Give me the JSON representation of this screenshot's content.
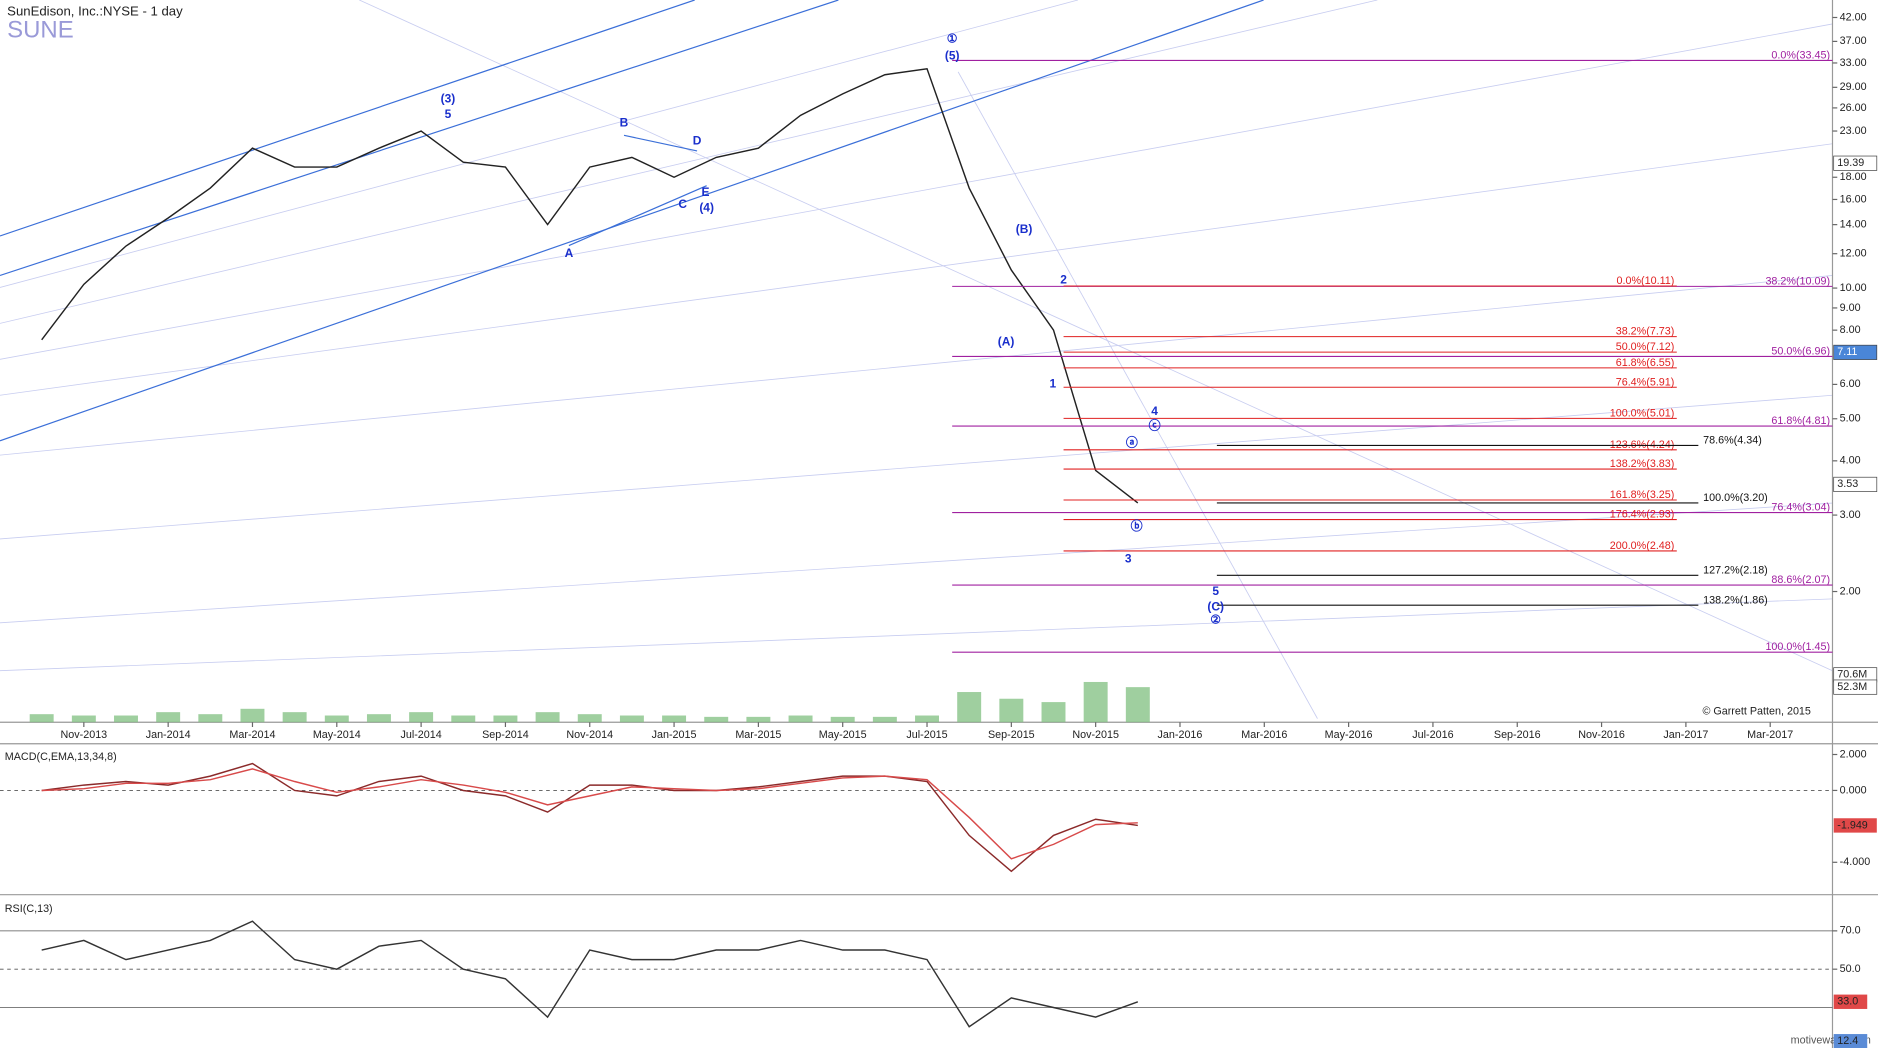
{
  "chart_data": [
    {
      "type": "line",
      "title": "SunEdison, Inc.:NYSE - 1 day",
      "symbol": "SUNE",
      "log_scale": true,
      "categories": [
        null,
        "Nov-2013",
        null,
        "Jan-2014",
        null,
        "Mar-2014",
        null,
        "May-2014",
        null,
        "Jul-2014",
        null,
        "Sep-2014",
        null,
        "Nov-2014",
        null,
        "Jan-2015",
        null,
        "Mar-2015",
        null,
        "May-2015",
        null,
        "Jul-2015",
        null,
        "Sep-2015",
        null,
        "Nov-2015",
        null,
        "Jan-2016",
        null,
        "Mar-2016",
        null,
        "May-2016",
        null,
        "Jul-2016",
        null,
        "Sep-2016",
        null,
        "Nov-2016",
        null,
        "Jan-2017",
        null,
        "Mar-2017",
        null
      ],
      "series": [
        {
          "name": "SUNE",
          "color": "#222222",
          "values": [
            7.6,
            10.2,
            12.5,
            14.5,
            17,
            21,
            19,
            19,
            21,
            23,
            19.5,
            19,
            14,
            19,
            20,
            18,
            20,
            21,
            25,
            28,
            31,
            32,
            17,
            11,
            8,
            3.8,
            3.2,
            null,
            null,
            null,
            null,
            null,
            null,
            null,
            null,
            null,
            null,
            null,
            null,
            null,
            null,
            null,
            null
          ]
        },
        {
          "name": "Volume",
          "color": "#7fbf7f",
          "axis": "y2",
          "values": [
            12,
            10,
            10,
            15,
            12,
            20,
            15,
            10,
            12,
            15,
            10,
            10,
            15,
            12,
            10,
            10,
            8,
            8,
            10,
            8,
            8,
            10,
            45,
            35,
            30,
            60,
            52.3,
            null,
            null,
            null,
            null,
            null,
            null,
            null,
            null,
            null,
            null,
            null,
            null,
            null,
            null,
            null,
            null
          ]
        }
      ],
      "ylim": [
        1,
        45.5
      ],
      "yticks": [
        {
          "value": 42,
          "label": "42.00"
        },
        {
          "value": 37,
          "label": "37.00"
        },
        {
          "value": 33,
          "label": "33.00"
        },
        {
          "value": 29,
          "label": "29.00"
        },
        {
          "value": 26,
          "label": "26.00"
        },
        {
          "value": 23,
          "label": "23.00"
        },
        {
          "value": 18,
          "label": "18.00"
        },
        {
          "value": 16,
          "label": "16.00"
        },
        {
          "value": 14,
          "label": "14.00"
        },
        {
          "value": 12,
          "label": "12.00"
        },
        {
          "value": 10,
          "label": "10.00"
        },
        {
          "value": 9,
          "label": "9.00"
        },
        {
          "value": 8,
          "label": "8.00"
        },
        {
          "value": 6,
          "label": "6.00"
        },
        {
          "value": 5,
          "label": "5.00"
        },
        {
          "value": 4,
          "label": "4.00"
        },
        {
          "value": 3,
          "label": "3.00"
        },
        {
          "value": 2,
          "label": "2.00"
        }
      ],
      "y2lim": [
        0,
        1073
      ],
      "y2ticks": [
        {
          "value": 70.6,
          "label": "70.6M"
        },
        {
          "value": 52.3,
          "label": "52.3M"
        }
      ],
      "price_markers": [
        19.39,
        7.11,
        3.53
      ],
      "price_marker_colors": [
        "#ffffff",
        "#4a86d8",
        "#ffffff"
      ],
      "fib_levels": [
        {
          "color": "#a020a0",
          "levels": [
            {
              "label": "0.0%(33.45)",
              "value": 33.45
            },
            {
              "label": "38.2%(10.09)",
              "value": 10.09
            },
            {
              "label": "50.0%(6.96)",
              "value": 6.96
            },
            {
              "label": "61.8%(4.81)",
              "value": 4.81
            },
            {
              "label": "76.4%(3.04)",
              "value": 3.04
            },
            {
              "label": "88.6%(2.07)",
              "value": 2.07
            },
            {
              "label": "100.0%(1.45)",
              "value": 1.45
            }
          ]
        },
        {
          "color": "#e02020",
          "levels": [
            {
              "label": "0.0%(10.11)",
              "value": 10.11
            },
            {
              "label": "38.2%(7.73)",
              "value": 7.73
            },
            {
              "label": "50.0%(7.12)",
              "value": 7.12
            },
            {
              "label": "61.8%(6.55)",
              "value": 6.55
            },
            {
              "label": "76.4%(5.91)",
              "value": 5.91
            },
            {
              "label": "100.0%(5.01)",
              "value": 5.01
            },
            {
              "label": "123.6%(4.24)",
              "value": 4.24
            },
            {
              "label": "138.2%(3.83)",
              "value": 3.83
            },
            {
              "label": "161.8%(3.25)",
              "value": 3.25
            },
            {
              "label": "176.4%(2.93)",
              "value": 2.93
            },
            {
              "label": "200.0%(2.48)",
              "value": 2.48
            }
          ]
        },
        {
          "color": "#111111",
          "levels": [
            {
              "label": "78.6%(4.34)",
              "value": 4.34
            },
            {
              "label": "100.0%(3.20)",
              "value": 3.2
            },
            {
              "label": "127.2%(2.18)",
              "value": 2.18
            },
            {
              "label": "138.2%(1.86)",
              "value": 1.86
            }
          ]
        }
      ],
      "wave_labels": [
        "①",
        "(5)",
        "(3)",
        "5",
        "A",
        "B",
        "C",
        "D",
        "E",
        "(4)",
        "(B)",
        "(A)",
        "2",
        "1",
        "4",
        "ⓒ",
        "ⓐ",
        "ⓑ",
        "3",
        "5",
        "(C)",
        "②"
      ],
      "copyright": "© Garrett Patten, 2015",
      "watermark": "motivewave.com"
    },
    {
      "type": "line",
      "title": "MACD(C,EMA,13,34,8)",
      "series": [
        {
          "name": "MACD",
          "color": "#8b2a2a",
          "values": [
            0,
            0.3,
            0.5,
            0.3,
            0.8,
            1.5,
            0,
            -0.3,
            0.5,
            0.8,
            0,
            -0.3,
            -1.2,
            0.3,
            0.3,
            0,
            0,
            0.2,
            0.5,
            0.8,
            0.8,
            0.5,
            -2.5,
            -4.5,
            -2.5,
            -1.6,
            -1.949
          ]
        },
        {
          "name": "Signal",
          "color": "#d84a4a",
          "values": [
            0,
            0.1,
            0.4,
            0.4,
            0.6,
            1.2,
            0.5,
            -0.1,
            0.2,
            0.6,
            0.3,
            -0.1,
            -0.8,
            -0.3,
            0.2,
            0.1,
            0,
            0.1,
            0.4,
            0.7,
            0.8,
            0.6,
            -1.5,
            -3.8,
            -3.0,
            -1.9,
            -1.8
          ]
        }
      ],
      "ylim": [
        -5.67,
        2.53
      ],
      "yticks": [
        {
          "value": 2,
          "label": "2.000"
        },
        {
          "value": 0,
          "label": "0.000"
        },
        {
          "value": -4,
          "label": "-4.000"
        }
      ],
      "levels": [
        0
      ],
      "current_value": -1.949
    },
    {
      "type": "line",
      "title": "RSI(C,13)",
      "series": [
        {
          "name": "RSI",
          "color": "#333333",
          "values": [
            60,
            65,
            55,
            60,
            65,
            75,
            55,
            50,
            62,
            65,
            50,
            45,
            25,
            60,
            55,
            55,
            60,
            60,
            65,
            60,
            60,
            55,
            20,
            35,
            30,
            25,
            33
          ]
        }
      ],
      "ylim": [
        12,
        87
      ],
      "yticks": [
        {
          "value": 70,
          "label": "70.0"
        },
        {
          "value": 50,
          "label": "50.0"
        }
      ],
      "levels": [
        70,
        50,
        30
      ],
      "current_values": [
        {
          "value": 33,
          "label": "33.0"
        },
        12.4
      ]
    }
  ]
}
